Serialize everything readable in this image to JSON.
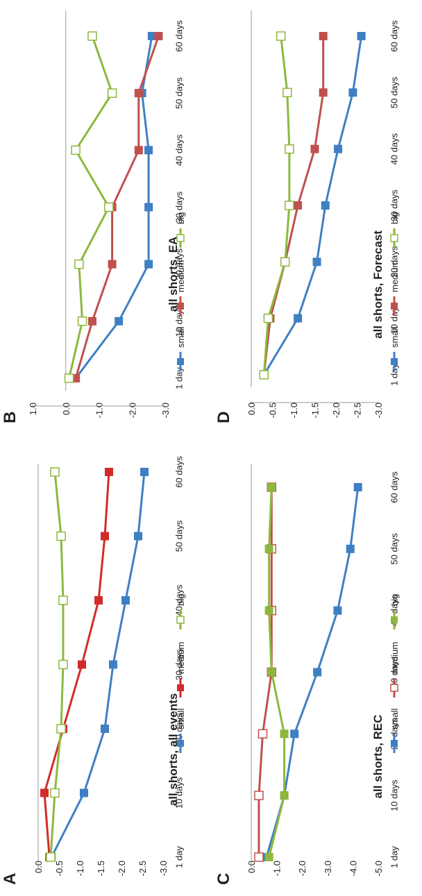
{
  "colors": {
    "small": "#3F7FC4",
    "medium_A": "#D42A2A",
    "medium": "#C0504D",
    "big": "#8DB83C",
    "axis": "#888888"
  },
  "chart_data": [
    {
      "panel": "A",
      "type": "line",
      "title": "all shorts, all events",
      "categories": [
        "1 day",
        "10 days",
        "20 days",
        "30 days",
        "40 days",
        "50 days",
        "60 days"
      ],
      "y_ticks": [
        "0.0",
        "-0.5",
        "-1.0",
        "-1.5",
        "-2.0",
        "-2.5",
        "-3.0"
      ],
      "ylim": [
        -3.0,
        0.0
      ],
      "series": [
        {
          "name": "small",
          "marker": "filled",
          "color": "#3F7FC4",
          "values": [
            -0.32,
            -1.1,
            -1.6,
            -1.8,
            -2.1,
            -2.4,
            -2.55
          ]
        },
        {
          "name": "medium",
          "marker": "filled",
          "color": "#D42A2A",
          "values": [
            -0.27,
            -0.15,
            -0.6,
            -1.05,
            -1.45,
            -1.6,
            -1.7
          ]
        },
        {
          "name": "big",
          "marker": "open",
          "color": "#8DB83C",
          "values": [
            -0.3,
            -0.4,
            -0.55,
            -0.6,
            -0.6,
            -0.55,
            -0.4
          ]
        }
      ]
    },
    {
      "panel": "B",
      "type": "line",
      "title": "all shorts, EA",
      "categories": [
        "1 day",
        "10 days",
        "20 days",
        "30 days",
        "40 days",
        "50 days",
        "60 days"
      ],
      "y_ticks": [
        "1.0",
        "0.0",
        "-1.0",
        "-2.0",
        "-3.0"
      ],
      "ylim": [
        -3.0,
        1.0
      ],
      "series": [
        {
          "name": "small",
          "marker": "filled",
          "color": "#3F7FC4",
          "values": [
            -0.3,
            -1.6,
            -2.5,
            -2.5,
            -2.5,
            -2.3,
            -2.6
          ]
        },
        {
          "name": "medium",
          "marker": "filled",
          "color": "#C0504D",
          "values": [
            -0.3,
            -0.8,
            -1.4,
            -1.4,
            -2.2,
            -2.2,
            -2.8
          ]
        },
        {
          "name": "big",
          "marker": "open",
          "color": "#8DB83C",
          "values": [
            -0.1,
            -0.5,
            -0.4,
            -1.3,
            -0.3,
            -1.4,
            -0.8
          ]
        }
      ]
    },
    {
      "panel": "C",
      "type": "line",
      "title": "all shorts, REC",
      "categories": [
        "1 day",
        "10 days",
        "20 days",
        "30 days",
        "40 days",
        "50 days",
        "60 days"
      ],
      "y_ticks": [
        "0.0",
        "-1.0",
        "-2.0",
        "-3.0",
        "-4.0",
        "-5.0"
      ],
      "ylim": [
        -5.0,
        0.0
      ],
      "series": [
        {
          "name": "small",
          "marker": "filled",
          "color": "#3F7FC4",
          "values": [
            -0.6,
            -1.3,
            -1.7,
            -2.6,
            -3.4,
            -3.9,
            -4.2
          ]
        },
        {
          "name": "medium",
          "marker": "open",
          "color": "#C0504D",
          "values": [
            -0.3,
            -0.3,
            -0.45,
            -0.8,
            -0.8,
            -0.8,
            -0.8
          ]
        },
        {
          "name": "big",
          "marker": "filled",
          "color": "#8DB83C",
          "values": [
            -0.7,
            -1.3,
            -1.3,
            -0.8,
            -0.7,
            -0.7,
            -0.8
          ]
        }
      ]
    },
    {
      "panel": "D",
      "type": "line",
      "title": "all shorts, Forecast",
      "categories": [
        "1 day",
        "10 days",
        "20 days",
        "30 days",
        "40 days",
        "50 days",
        "60 days"
      ],
      "y_ticks": [
        "0.0",
        "-0.5",
        "-1.0",
        "-1.5",
        "-2.0",
        "-2.5",
        "-3.0"
      ],
      "ylim": [
        -3.0,
        0.0
      ],
      "series": [
        {
          "name": "small",
          "marker": "filled",
          "color": "#3F7FC4",
          "values": [
            -0.3,
            -1.1,
            -1.55,
            -1.75,
            -2.05,
            -2.4,
            -2.6
          ]
        },
        {
          "name": "medium",
          "marker": "filled",
          "color": "#C0504D",
          "values": [
            -0.3,
            -0.45,
            -0.8,
            -1.1,
            -1.5,
            -1.7,
            -1.7
          ]
        },
        {
          "name": "big",
          "marker": "open",
          "color": "#8DB83C",
          "values": [
            -0.3,
            -0.4,
            -0.8,
            -0.9,
            -0.9,
            -0.85,
            -0.7
          ]
        }
      ]
    }
  ]
}
